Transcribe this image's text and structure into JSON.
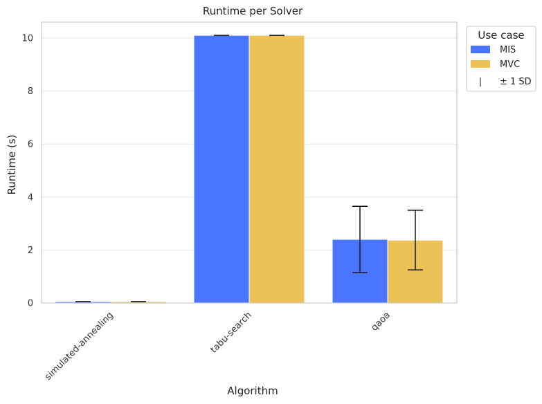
{
  "chart_data": {
    "type": "bar",
    "title": "Runtime per Solver",
    "xlabel": "Algorithm",
    "ylabel": "Runtime (s)",
    "categories": [
      "simulated-annealing",
      "tabu-search",
      "qaoa"
    ],
    "series": [
      {
        "name": "MIS",
        "color": "#4a76ff",
        "values": [
          0.05,
          10.1,
          2.4
        ],
        "error_low": [
          0.05,
          10.1,
          1.15
        ],
        "error_high": [
          0.05,
          10.1,
          3.65
        ]
      },
      {
        "name": "MVC",
        "color": "#ecc257",
        "values": [
          0.05,
          10.1,
          2.37
        ],
        "error_low": [
          0.05,
          10.1,
          1.25
        ],
        "error_high": [
          0.05,
          10.1,
          3.5
        ]
      }
    ],
    "yticks": [
      0,
      2,
      4,
      6,
      8,
      10
    ],
    "ylim": [
      0,
      10.6
    ],
    "grid": "y",
    "legend": {
      "title": "Use case",
      "placement": "outside-top-right",
      "error_symbol": "|",
      "error_label": "± 1 SD"
    }
  }
}
